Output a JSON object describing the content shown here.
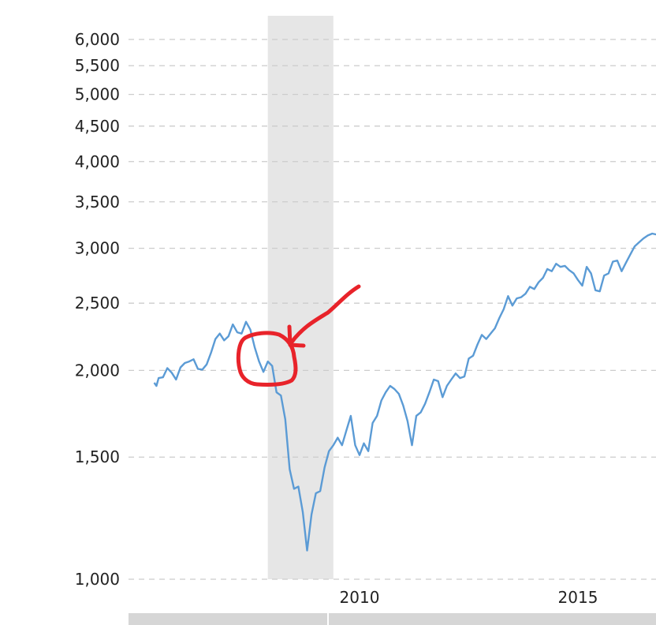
{
  "chart_data": {
    "type": "line",
    "title": "",
    "xlabel": "",
    "ylabel": "",
    "yscale": "log",
    "ylim": [
      1000,
      6200
    ],
    "xlim": [
      2005.3,
      2016.9
    ],
    "y_ticks": [
      {
        "value": 1000,
        "label": "1,000"
      },
      {
        "value": 1500,
        "label": "1,500"
      },
      {
        "value": 2000,
        "label": "2,000"
      },
      {
        "value": 2500,
        "label": "2,500"
      },
      {
        "value": 3000,
        "label": "3,000"
      },
      {
        "value": 3500,
        "label": "3,500"
      },
      {
        "value": 4000,
        "label": "4,000"
      },
      {
        "value": 4500,
        "label": "4,500"
      },
      {
        "value": 5000,
        "label": "5,000"
      },
      {
        "value": 5500,
        "label": "5,500"
      },
      {
        "value": 6000,
        "label": "6,000"
      }
    ],
    "x_ticks": [
      {
        "value": 2010,
        "label": "2010"
      },
      {
        "value": 2015,
        "label": "2015"
      }
    ],
    "grid": true,
    "recession_band": {
      "start": 2007.9,
      "end": 2009.4,
      "color": "#e6e6e6"
    },
    "series": [
      {
        "color": "#5b9bd5",
        "x": [
          2005.3,
          2005.35,
          2005.4,
          2005.5,
          2005.6,
          2005.7,
          2005.8,
          2005.9,
          2006.0,
          2006.1,
          2006.2,
          2006.3,
          2006.4,
          2006.5,
          2006.6,
          2006.7,
          2006.8,
          2006.9,
          2007.0,
          2007.1,
          2007.2,
          2007.3,
          2007.4,
          2007.5,
          2007.6,
          2007.7,
          2007.8,
          2007.9,
          2008.0,
          2008.1,
          2008.2,
          2008.3,
          2008.4,
          2008.5,
          2008.6,
          2008.7,
          2008.8,
          2008.9,
          2009.0,
          2009.1,
          2009.2,
          2009.3,
          2009.4,
          2009.5,
          2009.6,
          2009.7,
          2009.8,
          2009.9,
          2010.0,
          2010.1,
          2010.2,
          2010.3,
          2010.4,
          2010.5,
          2010.6,
          2010.7,
          2010.8,
          2010.9,
          2011.0,
          2011.1,
          2011.2,
          2011.3,
          2011.4,
          2011.5,
          2011.6,
          2011.7,
          2011.8,
          2011.9,
          2012.0,
          2012.1,
          2012.2,
          2012.3,
          2012.4,
          2012.5,
          2012.6,
          2012.7,
          2012.8,
          2012.9,
          2013.0,
          2013.1,
          2013.2,
          2013.3,
          2013.4,
          2013.5,
          2013.6,
          2013.7,
          2013.8,
          2013.9,
          2014.0,
          2014.1,
          2014.2,
          2014.3,
          2014.4,
          2014.5,
          2014.6,
          2014.7,
          2014.8,
          2014.9,
          2015.0,
          2015.1,
          2015.2,
          2015.3,
          2015.4,
          2015.5,
          2015.6,
          2015.7,
          2015.8,
          2015.9,
          2016.0,
          2016.1,
          2016.2,
          2016.3,
          2016.4,
          2016.5,
          2016.6,
          2016.7,
          2016.8,
          2016.9
        ],
        "y": [
          1920,
          1900,
          1950,
          1955,
          2015,
          1985,
          1940,
          2020,
          2050,
          2060,
          2075,
          2010,
          2005,
          2040,
          2120,
          2220,
          2260,
          2210,
          2240,
          2330,
          2270,
          2260,
          2350,
          2290,
          2160,
          2060,
          1990,
          2060,
          2030,
          1860,
          1840,
          1700,
          1440,
          1350,
          1360,
          1250,
          1100,
          1240,
          1330,
          1340,
          1450,
          1530,
          1560,
          1600,
          1560,
          1640,
          1720,
          1560,
          1510,
          1570,
          1530,
          1680,
          1720,
          1810,
          1860,
          1900,
          1880,
          1850,
          1780,
          1690,
          1560,
          1720,
          1740,
          1790,
          1860,
          1940,
          1930,
          1830,
          1900,
          1940,
          1980,
          1950,
          1960,
          2080,
          2100,
          2180,
          2250,
          2220,
          2260,
          2300,
          2380,
          2450,
          2560,
          2480,
          2540,
          2550,
          2580,
          2640,
          2620,
          2680,
          2720,
          2800,
          2780,
          2850,
          2820,
          2830,
          2790,
          2760,
          2700,
          2650,
          2820,
          2760,
          2610,
          2600,
          2740,
          2760,
          2870,
          2880,
          2780,
          2860,
          2940,
          3020,
          3060,
          3100,
          3130,
          3150,
          3140,
          3150
        ]
      }
    ],
    "annotation": {
      "shape": "hand-drawn red circle and arrow",
      "color": "#e8232a"
    }
  }
}
